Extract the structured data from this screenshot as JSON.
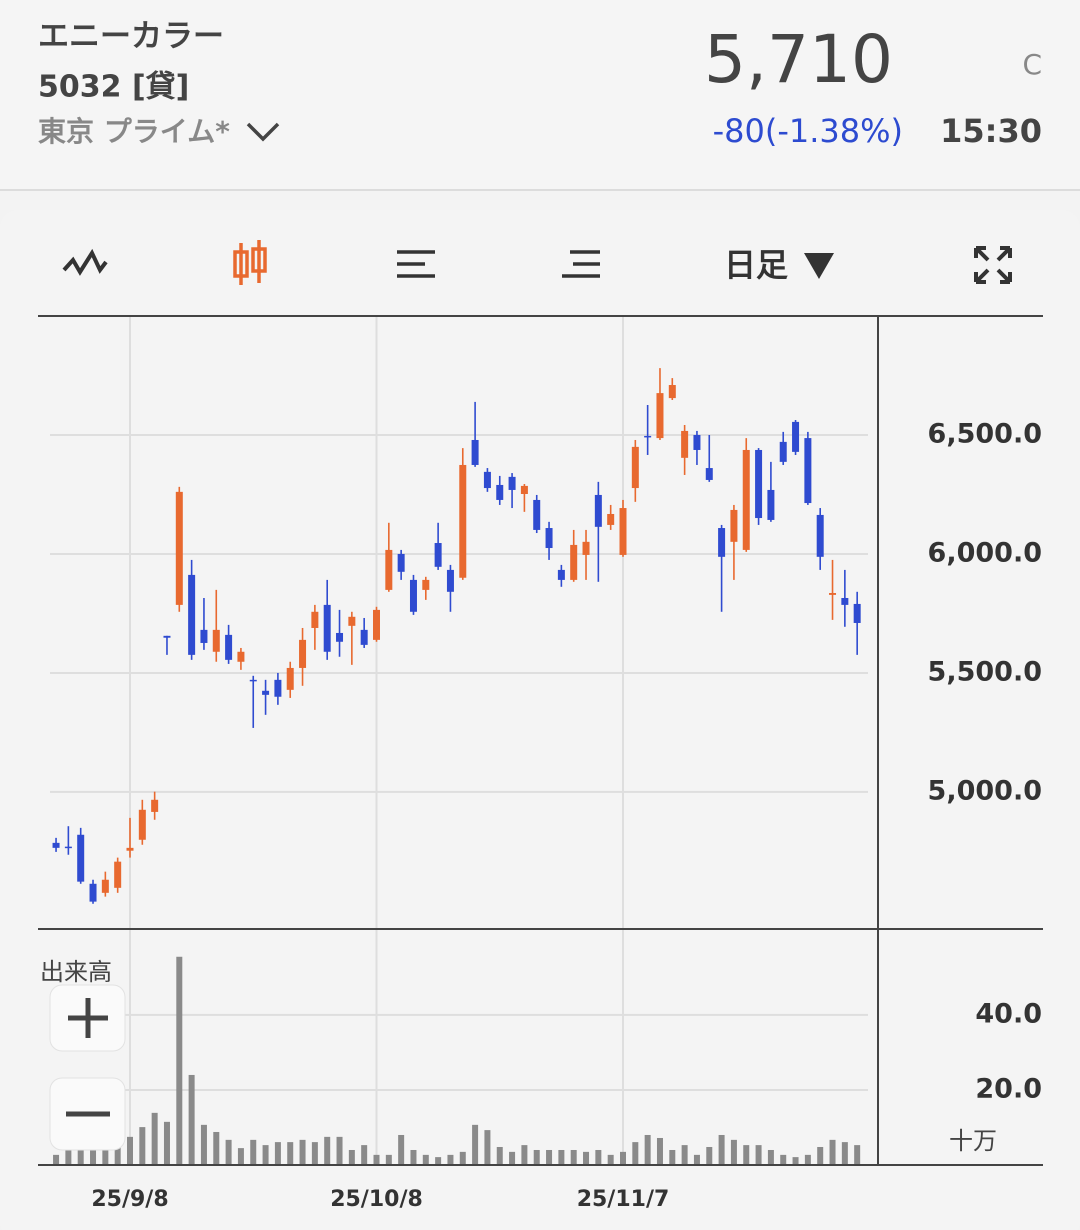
{
  "header": {
    "name": "エニーカラー",
    "code": "5032 [貸]",
    "market": "東京 プライム*",
    "price": "5,710",
    "status": "C",
    "change": "-80(-1.38%)",
    "time": "15:30"
  },
  "toolbar": {
    "period": "日足"
  },
  "chart_data": {
    "type": "candlestick",
    "categories": [
      null,
      null,
      null,
      null,
      null,
      null,
      "25/9/8",
      null,
      null,
      null,
      null,
      null,
      null,
      null,
      null,
      null,
      null,
      null,
      null,
      null,
      null,
      null,
      null,
      null,
      null,
      null,
      "25/10/8",
      null,
      null,
      null,
      null,
      null,
      null,
      null,
      null,
      null,
      null,
      null,
      null,
      null,
      null,
      null,
      null,
      null,
      null,
      null,
      "25/11/7",
      null,
      null,
      null,
      null,
      null,
      null,
      null,
      null,
      null,
      null,
      null,
      null,
      null,
      null,
      null,
      null,
      null,
      null,
      null
    ],
    "open": [
      4786,
      4770,
      4820,
      4614,
      4576,
      4597,
      4753,
      4799,
      4916,
      5656,
      5786,
      5912,
      5681,
      5589,
      5660,
      5547,
      5471,
      5425,
      5471,
      5429,
      5521,
      5689,
      5786,
      5668,
      5698,
      5681,
      5639,
      5849,
      6000,
      5891,
      5849,
      6046,
      5933,
      5900,
      6479,
      6345,
      6290,
      6324,
      6252,
      6227,
      6109,
      5933,
      5891,
      5996,
      6248,
      6122,
      5996,
      6277,
      6496,
      6487,
      6655,
      6404,
      6500,
      6361,
      6109,
      6051,
      6017,
      6437,
      6269,
      6471,
      6555,
      6487,
      6164,
      5828,
      5815,
      5790
    ],
    "high": [
      4807,
      4856,
      4849,
      4631,
      4665,
      4724,
      4891,
      4967,
      5001,
      5656,
      6282,
      5975,
      5815,
      5849,
      5702,
      5605,
      5488,
      5471,
      5500,
      5547,
      5689,
      5786,
      5891,
      5765,
      5757,
      5731,
      5778,
      6131,
      6017,
      5912,
      5904,
      6131,
      5954,
      6445,
      6639,
      6361,
      6328,
      6340,
      6294,
      6248,
      6135,
      5954,
      6101,
      6101,
      6303,
      6206,
      6227,
      6479,
      6626,
      6781,
      6739,
      6542,
      6517,
      6500,
      6122,
      6206,
      6487,
      6445,
      6387,
      6513,
      6563,
      6513,
      6193,
      5975,
      5933,
      5841
    ],
    "low": [
      4748,
      4736,
      4614,
      4530,
      4560,
      4576,
      4724,
      4778,
      4883,
      5576,
      5757,
      5555,
      5597,
      5547,
      5538,
      5513,
      5269,
      5324,
      5366,
      5395,
      5446,
      5597,
      5555,
      5568,
      5534,
      5605,
      5631,
      5841,
      5891,
      5744,
      5807,
      5933,
      5757,
      5891,
      6366,
      6261,
      6206,
      6193,
      6177,
      6088,
      5975,
      5862,
      5883,
      5891,
      5883,
      6101,
      5988,
      6219,
      6416,
      6479,
      6647,
      6332,
      6374,
      6303,
      5757,
      5891,
      6009,
      6122,
      6135,
      6374,
      6416,
      6206,
      5933,
      5723,
      5694,
      5576
    ],
    "close": [
      4765,
      4768,
      4623,
      4539,
      4631,
      4707,
      4765,
      4925,
      4967,
      5648,
      6261,
      5576,
      5626,
      5681,
      5555,
      5589,
      5467,
      5408,
      5400,
      5521,
      5639,
      5757,
      5589,
      5631,
      5736,
      5618,
      5765,
      6017,
      5925,
      5757,
      5891,
      5946,
      5841,
      6374,
      6374,
      6277,
      6227,
      6269,
      6286,
      6101,
      6025,
      5891,
      6038,
      6051,
      6114,
      6168,
      6193,
      6450,
      6492,
      6676,
      6710,
      6517,
      6437,
      6311,
      5988,
      6185,
      6437,
      6151,
      6143,
      6387,
      6429,
      6214,
      5988,
      5836,
      5786,
      5710
    ],
    "up_color": "#e8692f",
    "down_color": "#2f4bd0",
    "ylim": [
      4424,
      7000
    ],
    "yticks": [
      {
        "value": 5000,
        "label": "5,000.0"
      },
      {
        "value": 5500,
        "label": "5,500.0"
      },
      {
        "value": 6000,
        "label": "6,000.0"
      },
      {
        "value": 6500,
        "label": "6,500.0"
      }
    ],
    "grid": true,
    "volume": {
      "label": "出来高",
      "unit": "十万",
      "color": "#8a8a8a",
      "values": [
        2.7,
        4,
        8.8,
        6.1,
        4,
        4.8,
        7.5,
        10.1,
        13.9,
        11.5,
        55.5,
        24,
        10.7,
        8.8,
        6.7,
        4.5,
        6.7,
        5.3,
        6.1,
        6.1,
        6.7,
        6.1,
        7.5,
        7.5,
        4,
        5.3,
        2.7,
        2.7,
        8,
        4,
        2.7,
        2.1,
        2.7,
        3.5,
        10.7,
        9.3,
        4.8,
        3.5,
        5.3,
        4,
        4,
        4,
        4,
        3.5,
        4,
        2.7,
        3.5,
        6.1,
        8,
        7.2,
        4,
        5.3,
        2.7,
        4.8,
        8,
        6.7,
        5.3,
        5.3,
        4,
        2.7,
        2.1,
        2.7,
        4.8,
        6.7,
        6.1,
        5.3
      ],
      "ylim": [
        0,
        62.9
      ],
      "yticks": [
        {
          "value": 20,
          "label": "20.0"
        },
        {
          "value": 40,
          "label": "40.0"
        }
      ]
    }
  }
}
